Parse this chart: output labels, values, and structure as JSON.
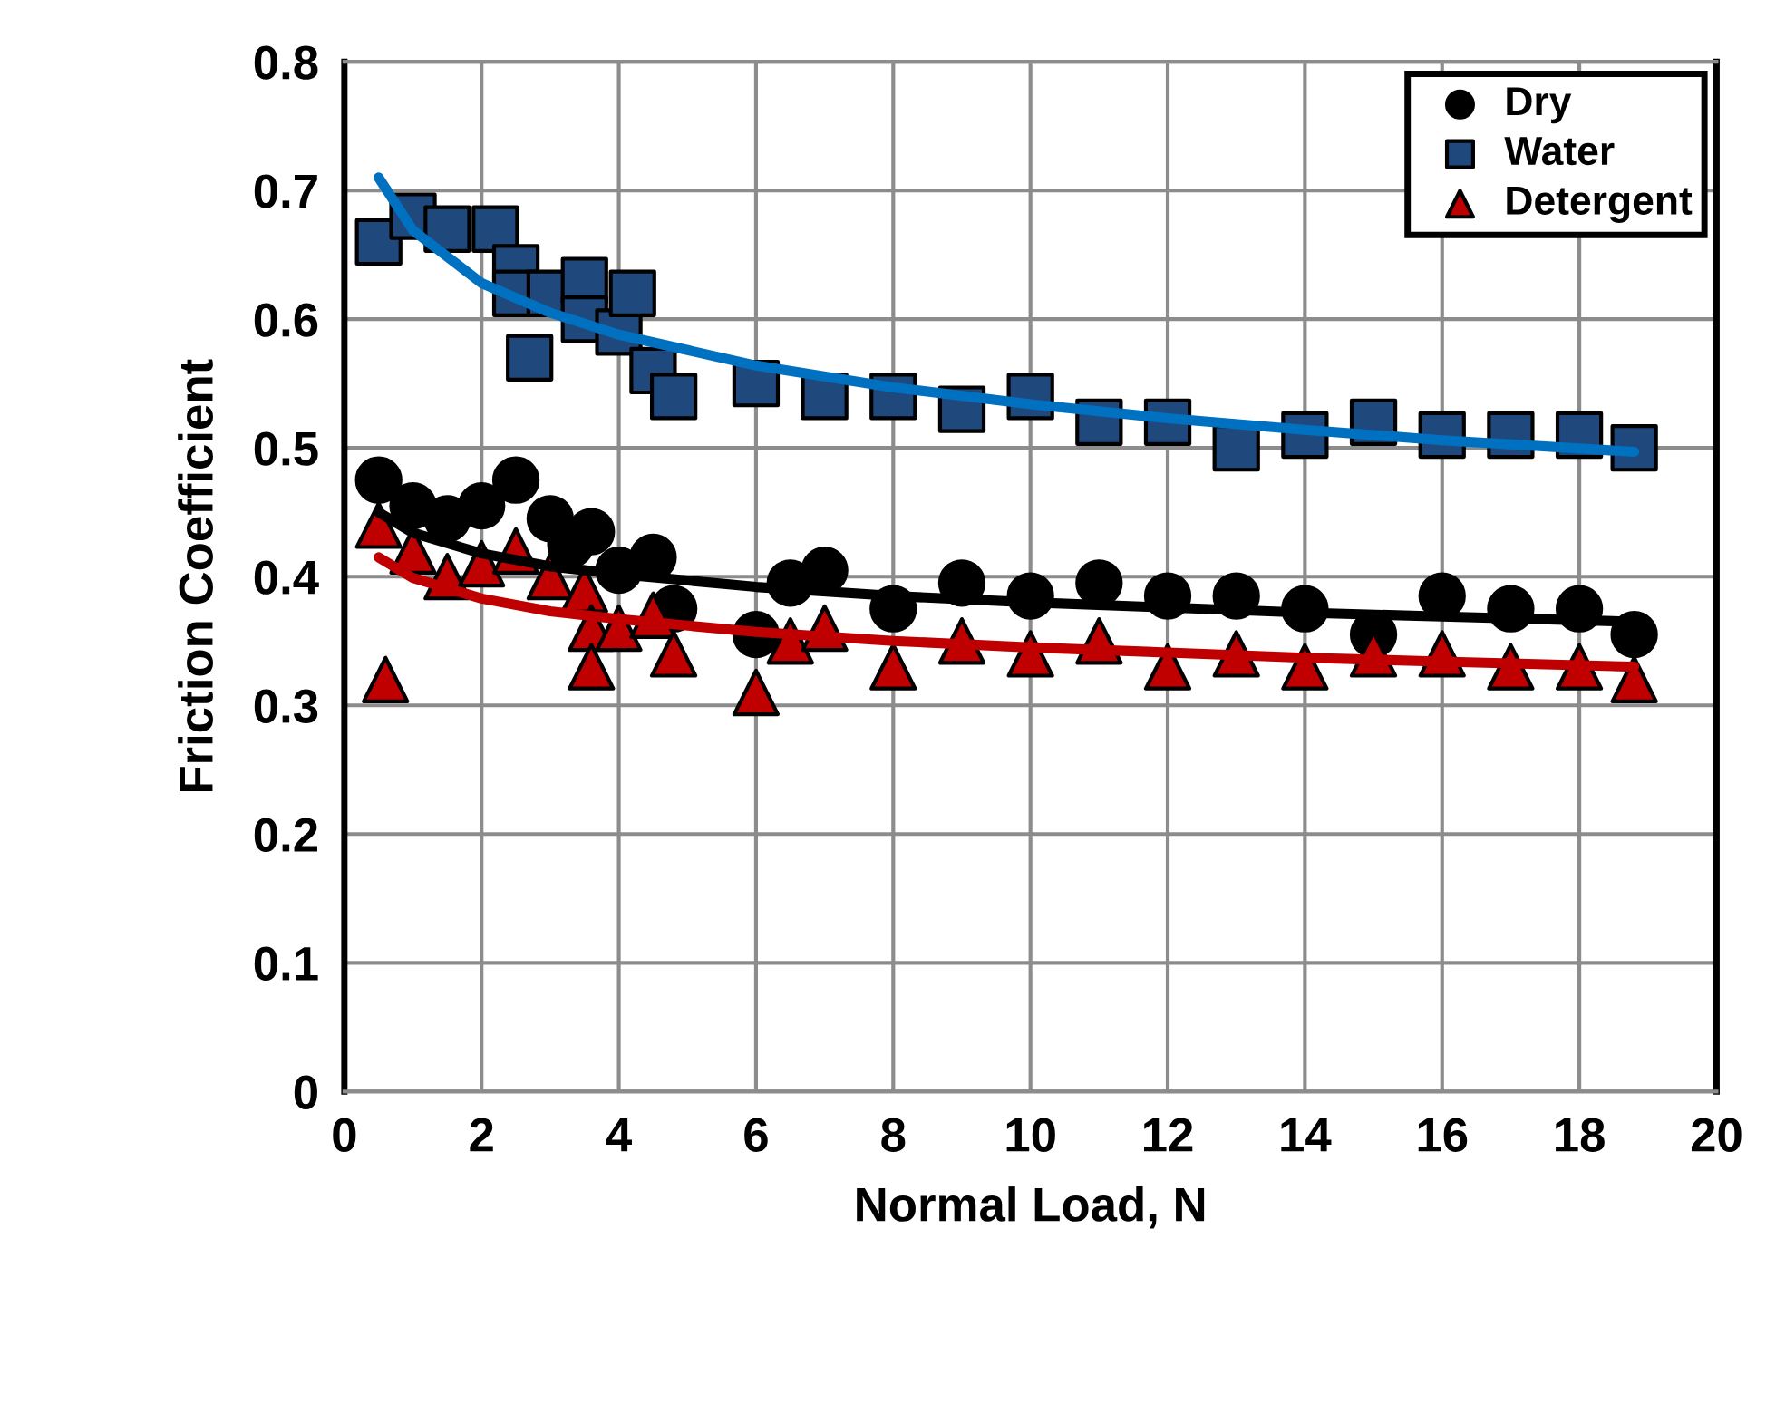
{
  "chart_data": {
    "type": "scatter",
    "xlabel": "Normal Load, N",
    "ylabel": "Friction Coefficient",
    "xlim": [
      0,
      20
    ],
    "xticks": [
      0,
      2,
      4,
      6,
      8,
      10,
      12,
      14,
      16,
      18,
      20
    ],
    "ylim": [
      0,
      0.8
    ],
    "yticks": [
      0,
      0.1,
      0.2,
      0.3,
      0.4,
      0.5,
      0.6,
      0.7,
      0.8
    ],
    "grid": true,
    "legend": "top right",
    "series": [
      {
        "name": "Dry",
        "color": "#000000",
        "marker": "circle",
        "x": [
          0.5,
          1,
          1.5,
          2,
          2.5,
          3,
          3.3,
          3.6,
          4,
          4.5,
          4.8,
          6,
          6.5,
          7,
          8,
          9,
          10,
          11,
          12,
          13,
          14,
          15,
          16,
          17,
          18,
          18.8
        ],
        "values": [
          0.475,
          0.455,
          0.445,
          0.455,
          0.475,
          0.445,
          0.425,
          0.435,
          0.405,
          0.415,
          0.375,
          0.355,
          0.395,
          0.405,
          0.375,
          0.395,
          0.385,
          0.395,
          0.385,
          0.385,
          0.375,
          0.355,
          0.385,
          0.375,
          0.375,
          0.355
        ]
      },
      {
        "name": "Water",
        "color": "#1f497d",
        "marker": "square",
        "x": [
          0.5,
          1,
          1.5,
          2.2,
          2.5,
          2.5,
          3,
          2.7,
          3.5,
          3.5,
          4,
          4.2,
          4.5,
          4.8,
          6,
          7,
          8,
          9,
          10,
          11,
          12,
          13,
          14,
          15,
          16,
          17,
          18,
          18.8
        ],
        "values": [
          0.66,
          0.68,
          0.67,
          0.67,
          0.64,
          0.62,
          0.62,
          0.57,
          0.63,
          0.6,
          0.59,
          0.62,
          0.56,
          0.54,
          0.55,
          0.54,
          0.54,
          0.53,
          0.54,
          0.52,
          0.52,
          0.5,
          0.51,
          0.52,
          0.51,
          0.51,
          0.51,
          0.5
        ]
      },
      {
        "name": "Detergent",
        "color": "#c00000",
        "marker": "triangle",
        "x": [
          0.5,
          0.6,
          1,
          1.5,
          2,
          2.5,
          3,
          3.5,
          3.6,
          3.6,
          4,
          4.5,
          4.8,
          6,
          6.5,
          7,
          8,
          9,
          10,
          11,
          12,
          13,
          14,
          15,
          16,
          17,
          18,
          18.8
        ],
        "values": [
          0.44,
          0.32,
          0.42,
          0.4,
          0.41,
          0.42,
          0.4,
          0.39,
          0.36,
          0.33,
          0.36,
          0.37,
          0.34,
          0.31,
          0.35,
          0.36,
          0.33,
          0.35,
          0.34,
          0.35,
          0.33,
          0.34,
          0.33,
          0.34,
          0.34,
          0.33,
          0.33,
          0.32
        ]
      },
      {
        "type": "line",
        "color": "#0070c0",
        "marker": "none",
        "x": [
          0.5,
          1,
          2,
          3,
          4,
          6,
          8,
          10,
          12,
          14,
          16,
          18.8
        ],
        "values": [
          0.71,
          0.669,
          0.628,
          0.605,
          0.588,
          0.564,
          0.547,
          0.534,
          0.523,
          0.514,
          0.506,
          0.497
        ]
      },
      {
        "type": "line",
        "color": "#000000",
        "marker": "none",
        "x": [
          0.5,
          1,
          2,
          3,
          4,
          6,
          8,
          10,
          12,
          14,
          16,
          18.8
        ],
        "values": [
          0.45,
          0.434,
          0.418,
          0.408,
          0.402,
          0.392,
          0.385,
          0.38,
          0.376,
          0.372,
          0.369,
          0.365
        ]
      },
      {
        "type": "line",
        "color": "#c00000",
        "marker": "none",
        "x": [
          0.5,
          1,
          2,
          3,
          4,
          6,
          8,
          10,
          12,
          14,
          16,
          18.8
        ],
        "values": [
          0.415,
          0.399,
          0.383,
          0.373,
          0.367,
          0.357,
          0.35,
          0.345,
          0.341,
          0.337,
          0.334,
          0.33
        ]
      }
    ]
  }
}
